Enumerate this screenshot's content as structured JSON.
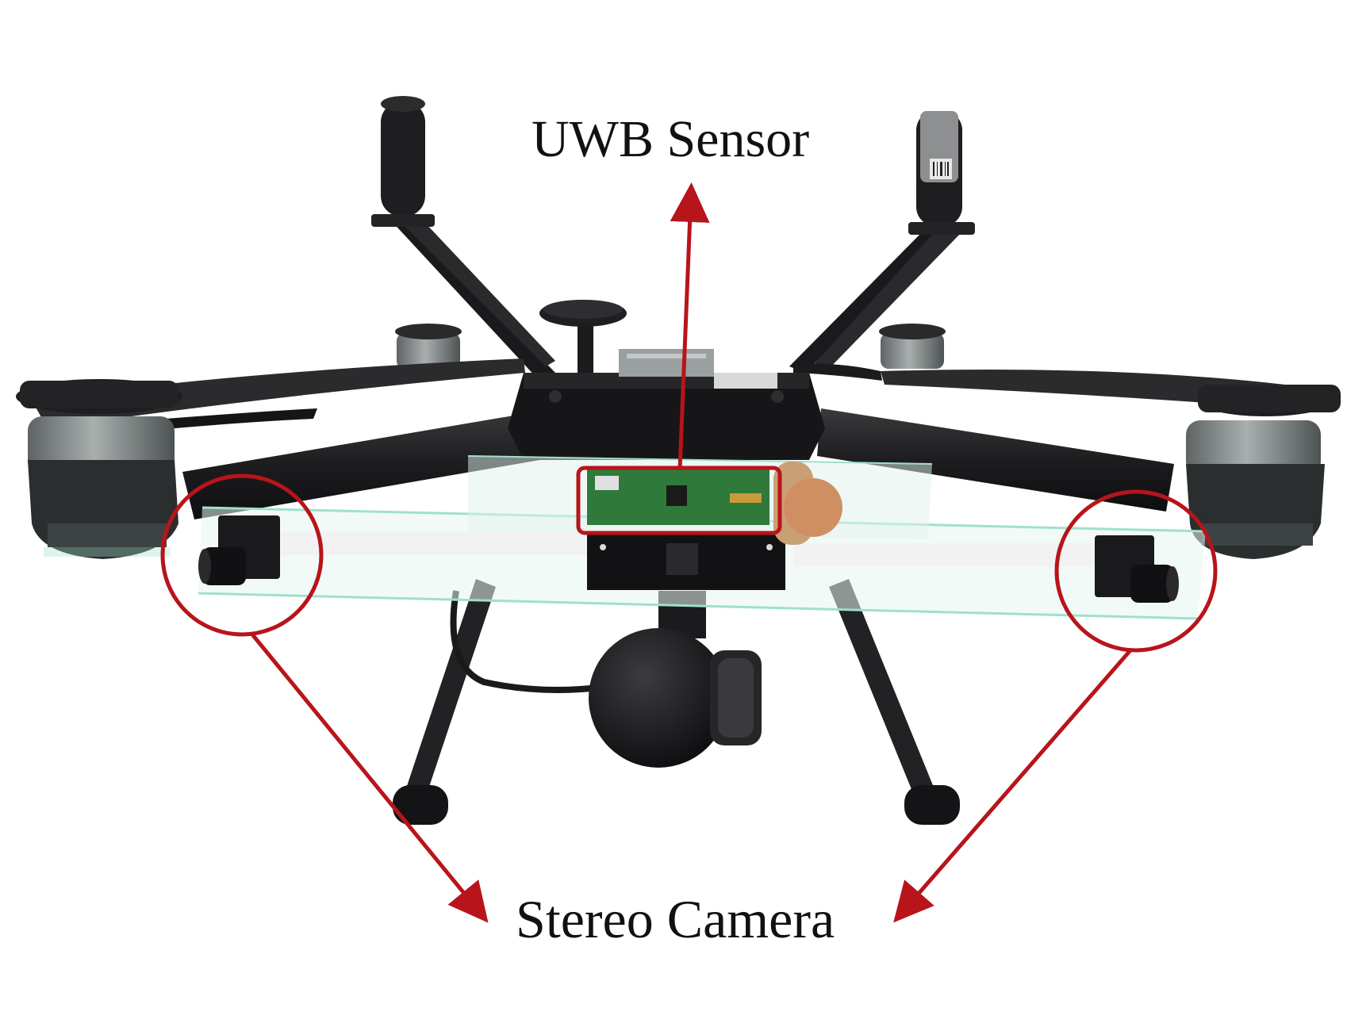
{
  "annotations": {
    "uwb_sensor_label": "UWB Sensor",
    "stereo_camera_label": "Stereo Camera"
  },
  "colors": {
    "annotation_red": "#b8141b",
    "drone_body": "#1c1c1e",
    "motor_grey": "#8a8f8f",
    "pcb_green": "#2f7a3a",
    "glass_edge": "#9fe0cc",
    "background": "#ffffff"
  },
  "components": [
    "uwb-antenna",
    "gps-puck",
    "propeller",
    "motor",
    "arm",
    "center-hub",
    "uwb-module",
    "stereo-camera",
    "gimbal-camera",
    "landing-gear"
  ]
}
